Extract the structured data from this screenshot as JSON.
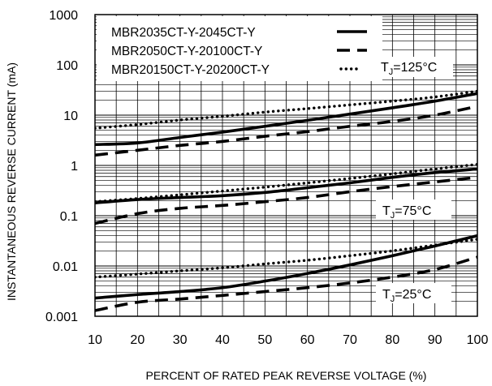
{
  "chart_data": {
    "type": "line",
    "title": "",
    "xlabel": "PERCENT OF RATED PEAK REVERSE VOLTAGE (%)",
    "ylabel": "INSTANTANEOUS REVERSE CURRENT (mA)",
    "xlim": [
      10,
      100
    ],
    "ylim": [
      0.001,
      1000
    ],
    "y_scale": "log",
    "grid": true,
    "legend_placement": "top-left",
    "x_tick_labels": [
      "10",
      "20",
      "30",
      "40",
      "50",
      "60",
      "70",
      "80",
      "90",
      "100"
    ],
    "y_tick_labels": [
      "0.001",
      "0.01",
      "0.1",
      "1",
      "10",
      "100",
      "1000"
    ],
    "legend": [
      {
        "name": "MBR2035CT-Y-2045CT-Y",
        "style": "solid"
      },
      {
        "name": "MBR2050CT-Y-20100CT-Y",
        "style": "dashed"
      },
      {
        "name": "MBR20150CT-Y-20200CT-Y",
        "style": "dotted"
      }
    ],
    "annotations": [
      {
        "text": "TJ=125°C",
        "base": "T",
        "sub": "J",
        "rest": "=125°C"
      },
      {
        "text": "TJ=75°C",
        "base": "T",
        "sub": "J",
        "rest": "=75°C"
      },
      {
        "text": "TJ=25°C",
        "base": "T",
        "sub": "J",
        "rest": "=25°C"
      }
    ],
    "groups": [
      {
        "label": "TJ=125°C",
        "series": [
          {
            "legend_index": 0,
            "style": "solid",
            "x": [
              10,
              20,
              30,
              40,
              50,
              60,
              70,
              80,
              90,
              100
            ],
            "y": [
              2.6,
              2.8,
              3.6,
              4.6,
              6.0,
              7.9,
              10.5,
              14.0,
              19.0,
              27.0
            ]
          },
          {
            "legend_index": 1,
            "style": "dashed",
            "x": [
              10,
              20,
              30,
              40,
              50,
              60,
              70,
              80,
              90,
              100
            ],
            "y": [
              1.6,
              2.0,
              2.5,
              3.0,
              3.8,
              4.7,
              6.0,
              7.5,
              10.0,
              15.0
            ]
          },
          {
            "legend_index": 2,
            "style": "dotted",
            "x": [
              10,
              20,
              30,
              40,
              50,
              60,
              70,
              80,
              90,
              100
            ],
            "y": [
              5.5,
              6.5,
              8.0,
              9.5,
              11.5,
              13.5,
              16.0,
              19.0,
              23.0,
              30.0
            ]
          }
        ]
      },
      {
        "label": "TJ=75°C",
        "series": [
          {
            "legend_index": 0,
            "style": "solid",
            "x": [
              10,
              20,
              30,
              40,
              50,
              60,
              70,
              80,
              90,
              100
            ],
            "y": [
              0.18,
              0.21,
              0.23,
              0.25,
              0.29,
              0.36,
              0.45,
              0.58,
              0.72,
              0.85
            ]
          },
          {
            "legend_index": 1,
            "style": "dashed",
            "x": [
              10,
              20,
              30,
              40,
              50,
              60,
              70,
              80,
              90,
              100
            ],
            "y": [
              0.07,
              0.11,
              0.14,
              0.16,
              0.19,
              0.23,
              0.3,
              0.38,
              0.47,
              0.58
            ]
          },
          {
            "legend_index": 2,
            "style": "dotted",
            "x": [
              10,
              20,
              30,
              40,
              50,
              60,
              70,
              80,
              90,
              100
            ],
            "y": [
              0.19,
              0.22,
              0.26,
              0.31,
              0.37,
              0.45,
              0.55,
              0.68,
              0.85,
              1.05
            ]
          }
        ]
      },
      {
        "label": "TJ=25°C",
        "series": [
          {
            "legend_index": 0,
            "style": "solid",
            "x": [
              10,
              20,
              30,
              40,
              50,
              60,
              70,
              80,
              90,
              100
            ],
            "y": [
              0.0023,
              0.0027,
              0.0031,
              0.0037,
              0.005,
              0.0071,
              0.0105,
              0.016,
              0.025,
              0.04
            ]
          },
          {
            "legend_index": 1,
            "style": "dashed",
            "x": [
              10,
              20,
              30,
              40,
              50,
              60,
              70,
              80,
              90,
              100
            ],
            "y": [
              0.0013,
              0.0019,
              0.0022,
              0.0026,
              0.0031,
              0.0037,
              0.0046,
              0.006,
              0.0085,
              0.015
            ]
          },
          {
            "legend_index": 2,
            "style": "dotted",
            "x": [
              10,
              20,
              30,
              40,
              50,
              60,
              70,
              80,
              90,
              100
            ],
            "y": [
              0.006,
              0.0069,
              0.008,
              0.0092,
              0.011,
              0.013,
              0.016,
              0.02,
              0.026,
              0.034
            ]
          }
        ]
      }
    ]
  }
}
